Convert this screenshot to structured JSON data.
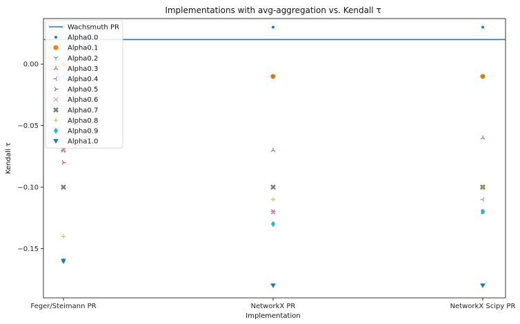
{
  "chart_data": {
    "type": "scatter",
    "title": "Implementations with avg-aggregation vs. Kendall τ",
    "xlabel": "Implementation",
    "ylabel": "Kendall τ",
    "categories": [
      "Feger/Steimann PR",
      "NetworkX PR",
      "NetworkX Scipy PR"
    ],
    "ylim": [
      -0.19,
      0.037
    ],
    "yticks": [
      0.0,
      -0.05,
      -0.1,
      -0.15
    ],
    "ytick_labels": [
      "0.00",
      "−0.05",
      "−0.10",
      "−0.15"
    ],
    "grid": false,
    "legend_position": "top-left",
    "hlines": [
      {
        "name": "Wachsmuth PR",
        "y": 0.02,
        "color": "#1f77b4"
      }
    ],
    "series": [
      {
        "name": "Alpha0.0",
        "marker": "point",
        "color": "#1f77b4",
        "values": [
          0.03,
          0.03,
          0.03
        ]
      },
      {
        "name": "Alpha0.1",
        "marker": "circle",
        "color": "#ff7f0e",
        "values": [
          0.0,
          -0.01,
          -0.01
        ]
      },
      {
        "name": "Alpha0.2",
        "marker": "tri_down",
        "color": "#2ca02c",
        "values": [
          -0.01,
          -0.01,
          -0.01
        ]
      },
      {
        "name": "Alpha0.3",
        "marker": "tri_up",
        "color": "#d62728",
        "values": [
          -0.07,
          -0.07,
          -0.06
        ]
      },
      {
        "name": "Alpha0.4",
        "marker": "tri_left",
        "color": "#9467bd",
        "values": [
          -0.07,
          -0.12,
          -0.11
        ]
      },
      {
        "name": "Alpha0.5",
        "marker": "tri_right",
        "color": "#d62728",
        "values": [
          -0.08,
          -0.12,
          -0.12
        ]
      },
      {
        "name": "Alpha0.6",
        "marker": "x",
        "color": "#e377c2",
        "values": [
          -0.07,
          -0.12,
          -0.12
        ]
      },
      {
        "name": "Alpha0.7",
        "marker": "X",
        "color": "#7f7f7f",
        "values": [
          -0.1,
          -0.1,
          -0.1
        ]
      },
      {
        "name": "Alpha0.8",
        "marker": "plus",
        "color": "#bcbd22",
        "values": [
          -0.14,
          -0.11,
          -0.1
        ]
      },
      {
        "name": "Alpha0.9",
        "marker": "diamond",
        "color": "#17becf",
        "values": [
          -0.16,
          -0.13,
          -0.12
        ]
      },
      {
        "name": "Alpha1.0",
        "marker": "triangle_down",
        "color": "#1f77b4",
        "values": [
          -0.16,
          -0.18,
          -0.18
        ]
      }
    ]
  }
}
